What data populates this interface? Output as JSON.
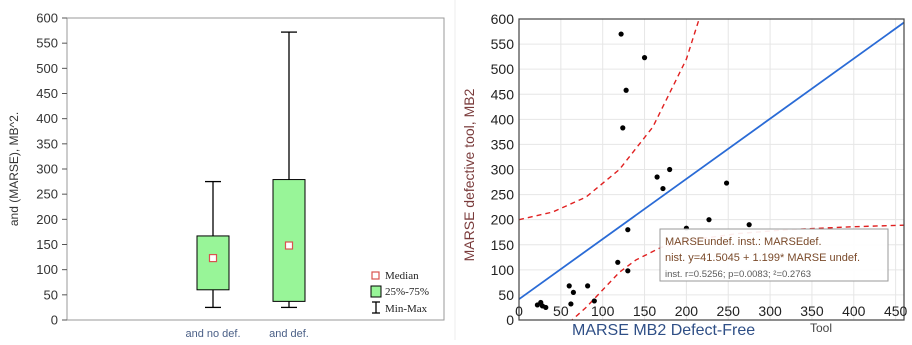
{
  "chart_data": [
    {
      "type": "box",
      "ylabel": "and (MARSE), MB^2.",
      "xlabel": "",
      "ylim": [
        0,
        600
      ],
      "yticks": [
        "0",
        "50",
        "100",
        "150",
        "200",
        "250",
        "300",
        "350",
        "400",
        "450",
        "500",
        "550",
        "600"
      ],
      "categories": [
        "and no def.",
        "and def."
      ],
      "boxes": [
        {
          "category": "and no def.",
          "min": 25,
          "q1": 60,
          "median": 123,
          "q3": 167,
          "max": 275
        },
        {
          "category": "and def.",
          "min": 25,
          "q1": 37,
          "median": 148,
          "q3": 279,
          "max": 572
        }
      ],
      "legend": [
        "Median",
        "25%-75%",
        "Min-Max"
      ],
      "legend_position": "bottom-right",
      "colors": {
        "box_fill": "#98f598",
        "median_marker": "#d9534f"
      }
    },
    {
      "type": "scatter",
      "ylabel": "MARSE defective tool, MB2",
      "xlabel": "MARSE MB2 Defect-Free",
      "xlabel_suffix": "Tool",
      "xlim": [
        0,
        460
      ],
      "ylim": [
        0,
        600
      ],
      "xticks": [
        "0",
        "50",
        "100",
        "150",
        "200",
        "250",
        "300",
        "350",
        "400",
        "450"
      ],
      "yticks": [
        "0",
        "50",
        "100",
        "150",
        "200",
        "250",
        "300",
        "350",
        "400",
        "450",
        "500",
        "550",
        "600"
      ],
      "points": [
        {
          "x": 22,
          "y": 30
        },
        {
          "x": 26,
          "y": 35
        },
        {
          "x": 28,
          "y": 28
        },
        {
          "x": 32,
          "y": 25
        },
        {
          "x": 60,
          "y": 68
        },
        {
          "x": 62,
          "y": 32
        },
        {
          "x": 65,
          "y": 55
        },
        {
          "x": 82,
          "y": 68
        },
        {
          "x": 90,
          "y": 38
        },
        {
          "x": 118,
          "y": 115
        },
        {
          "x": 122,
          "y": 570
        },
        {
          "x": 124,
          "y": 383
        },
        {
          "x": 128,
          "y": 458
        },
        {
          "x": 130,
          "y": 180
        },
        {
          "x": 130,
          "y": 98
        },
        {
          "x": 150,
          "y": 523
        },
        {
          "x": 165,
          "y": 285
        },
        {
          "x": 172,
          "y": 262
        },
        {
          "x": 180,
          "y": 300
        },
        {
          "x": 200,
          "y": 183
        },
        {
          "x": 227,
          "y": 200
        },
        {
          "x": 248,
          "y": 273
        },
        {
          "x": 275,
          "y": 190
        }
      ],
      "regression": {
        "intercept": 41.5045,
        "slope": 1.199
      },
      "ci_band": {
        "upper": [
          [
            0,
            200
          ],
          [
            40,
            215
          ],
          [
            80,
            245
          ],
          [
            120,
            300
          ],
          [
            160,
            385
          ],
          [
            200,
            520
          ],
          [
            220,
            625
          ]
        ],
        "lower": [
          [
            60,
            -5
          ],
          [
            80,
            25
          ],
          [
            100,
            60
          ],
          [
            120,
            95
          ],
          [
            140,
            120
          ],
          [
            170,
            145
          ],
          [
            200,
            158
          ],
          [
            260,
            172
          ],
          [
            320,
            180
          ],
          [
            400,
            186
          ],
          [
            460,
            189
          ]
        ]
      },
      "annotation": {
        "line1": "MARSEundef. inst.: MARSEdef.",
        "line2": "nist. y=41.5045 + 1.199* MARSE undef.",
        "line3": "inst. r=0.5256; p=0.0083; ²=0.2763"
      },
      "colors": {
        "points": "#000000",
        "regression": "#2a6bd6",
        "ci": "#e02020"
      }
    }
  ]
}
